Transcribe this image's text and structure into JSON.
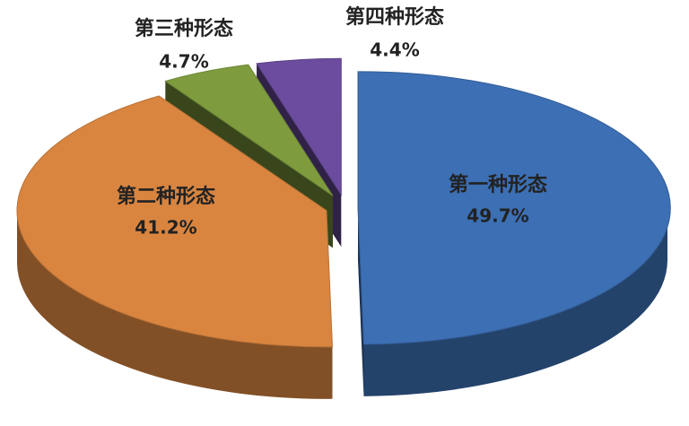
{
  "chart_data": {
    "type": "pie",
    "categories": [
      "第一种形态",
      "第二种形态",
      "第三种形态",
      "第四种形态"
    ],
    "values": [
      49.7,
      41.2,
      4.7,
      4.4
    ],
    "value_labels": [
      "49.7%",
      "41.2%",
      "4.7%",
      "4.4%"
    ],
    "colors": [
      "#3c6fb3",
      "#d98540",
      "#7e9c3e",
      "#6b4c9e"
    ]
  }
}
